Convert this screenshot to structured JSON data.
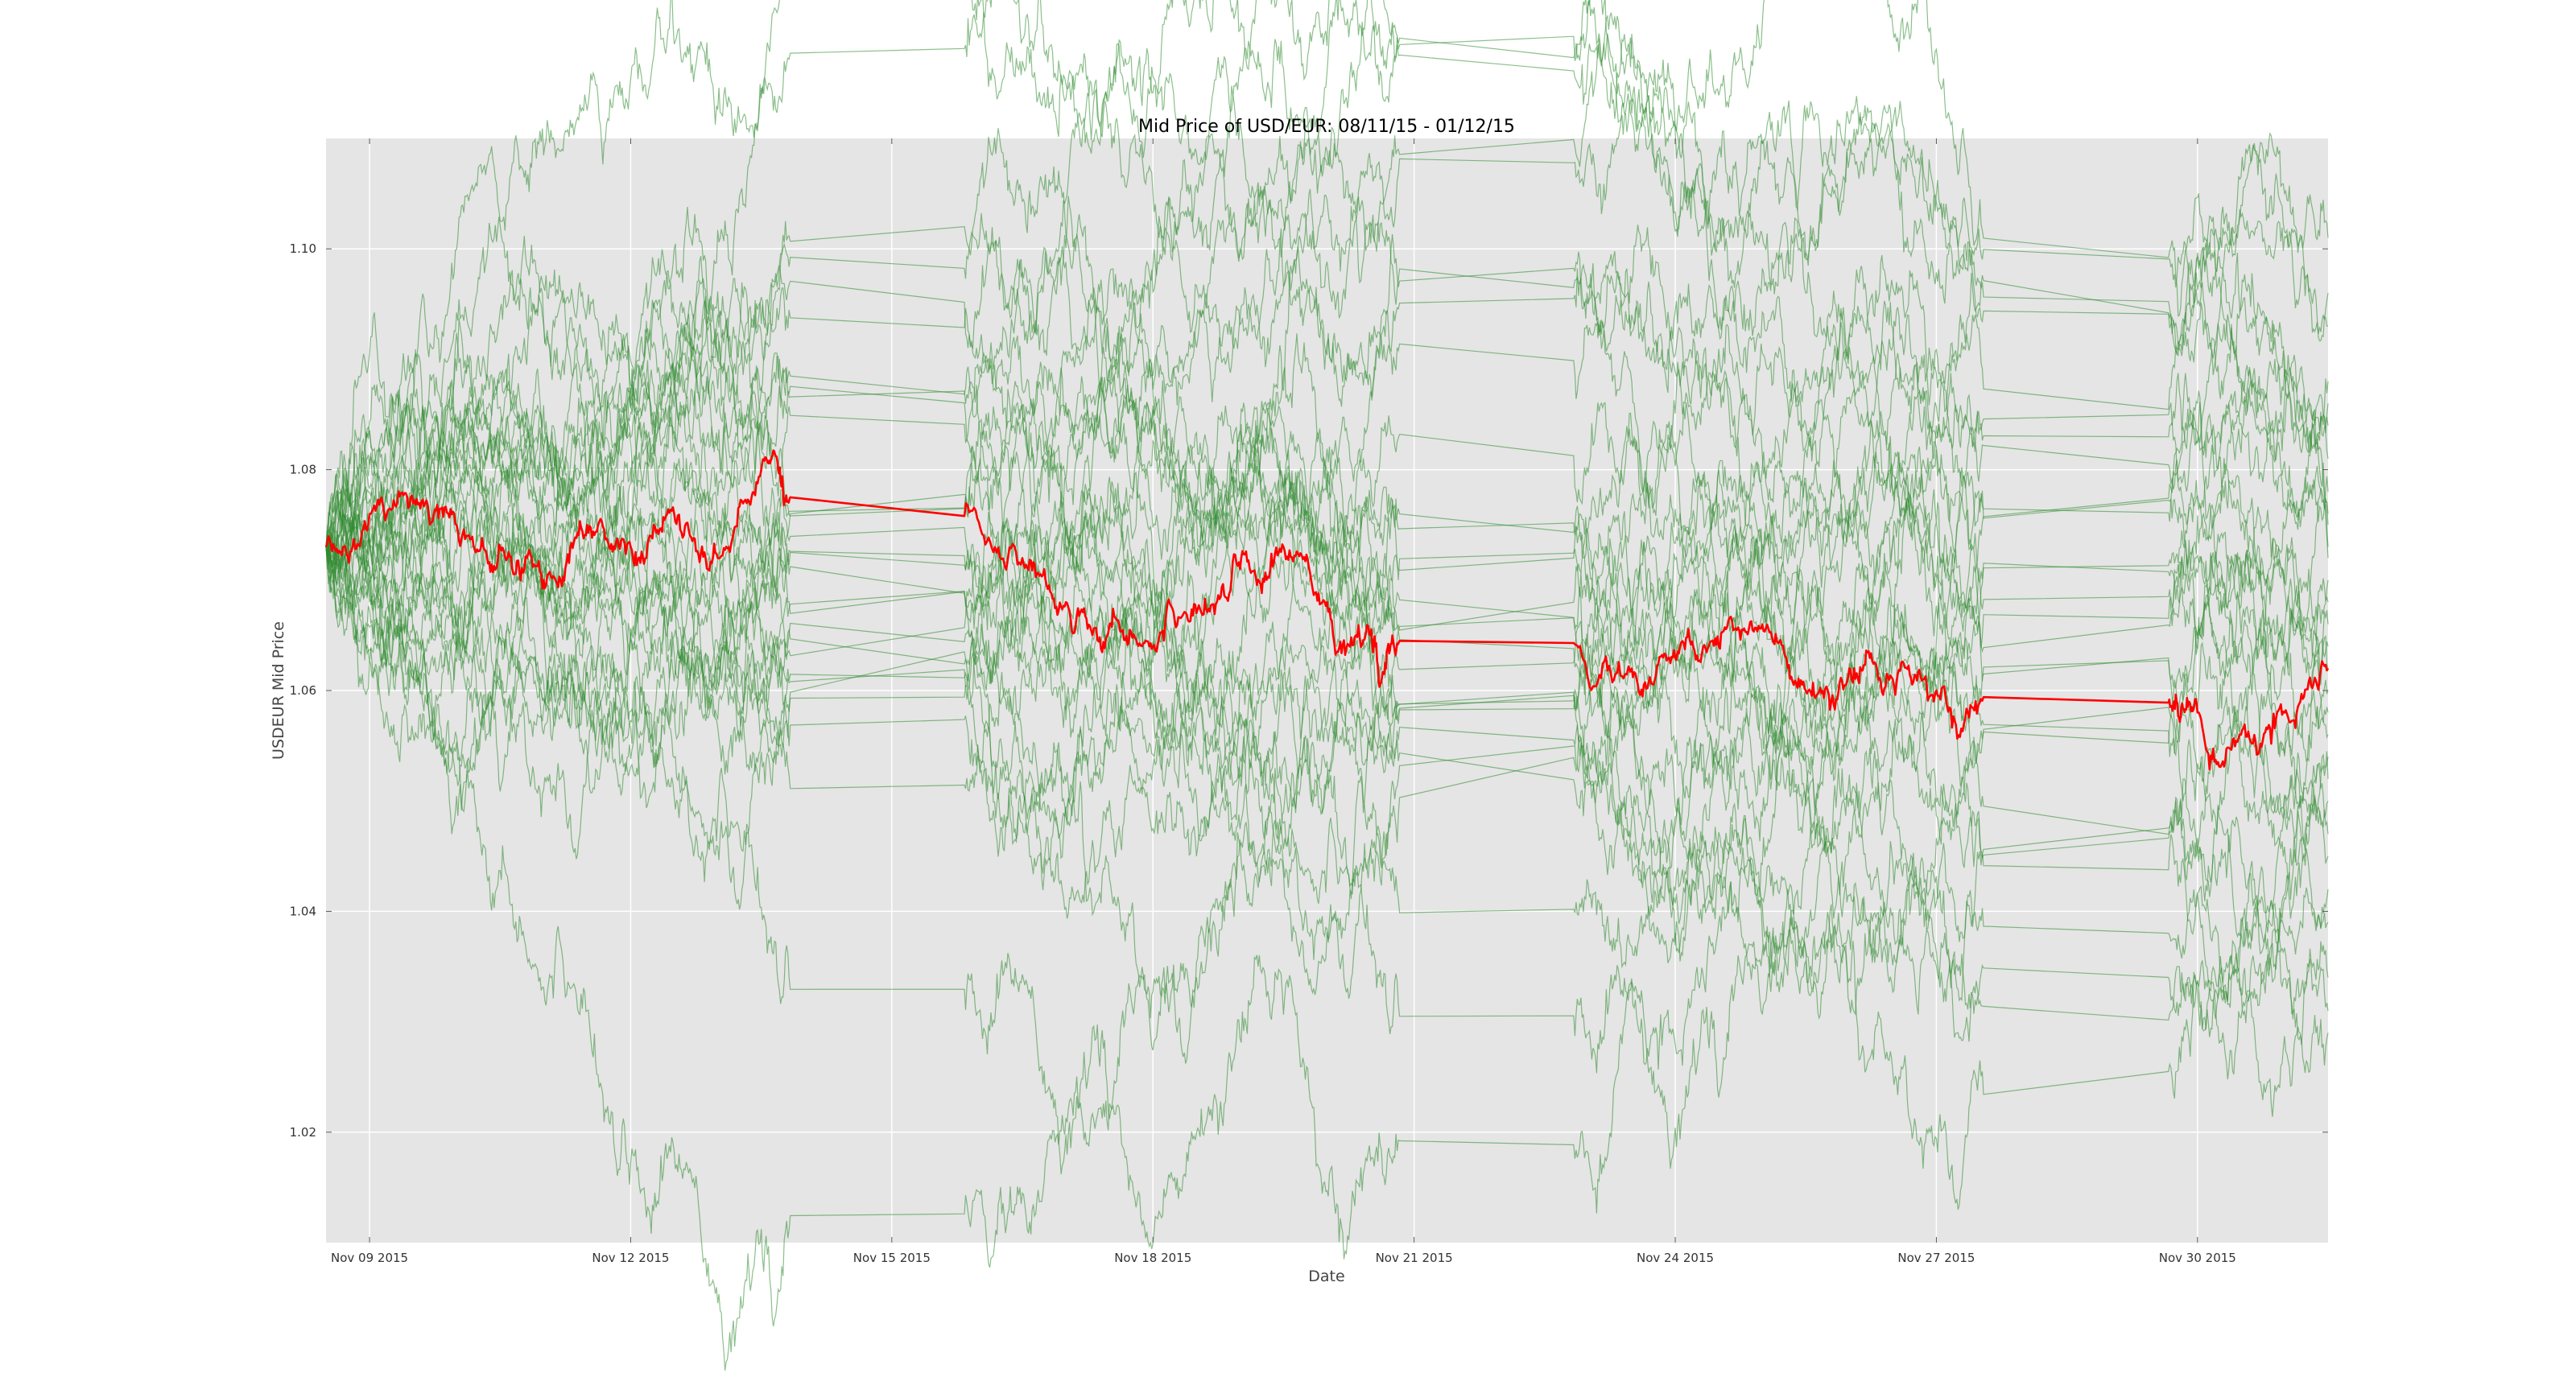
{
  "chart_data": {
    "type": "line",
    "title": "Mid Price of USD/EUR: 08/11/15 - 01/12/15",
    "xlabel": "Date",
    "ylabel": "USDEUR Mid Price",
    "xlim": [
      "2015-11-08T12:00",
      "2015-12-01T12:00"
    ],
    "ylim": [
      1.01,
      1.11
    ],
    "x_ticks": [
      "2015-11-09",
      "2015-11-12",
      "2015-11-15",
      "2015-11-18",
      "2015-11-21",
      "2015-11-24",
      "2015-11-27",
      "2015-11-30"
    ],
    "x_tick_labels": [
      "Nov 09 2015",
      "Nov 12 2015",
      "Nov 15 2015",
      "Nov 18 2015",
      "Nov 21 2015",
      "Nov 24 2015",
      "Nov 27 2015",
      "Nov 30 2015"
    ],
    "y_ticks": [
      1.02,
      1.04,
      1.06,
      1.08,
      1.1
    ],
    "y_tick_labels": [
      "1.02",
      "1.04",
      "1.06",
      "1.08",
      "1.10"
    ],
    "grid": true,
    "background": "#e5e5e5",
    "series_colors": {
      "observed": "#ff0000",
      "simulated": "#2e8b2e"
    },
    "trading_gaps": [
      [
        "2015-11-13T20:00",
        "2015-11-15T20:00"
      ],
      [
        "2015-11-20T20:00",
        "2015-11-22T20:00"
      ],
      [
        "2015-11-27T13:00",
        "2015-11-29T16:00"
      ]
    ],
    "simulated_paths": {
      "count": 30,
      "start_value": 1.073,
      "end_values": [
        1.101,
        1.096,
        1.093,
        1.088,
        1.086,
        1.084,
        1.081,
        1.078,
        1.076,
        1.075,
        1.073,
        1.072,
        1.07,
        1.068,
        1.066,
        1.064,
        1.062,
        1.06,
        1.058,
        1.056,
        1.054,
        1.052,
        1.05,
        1.047,
        1.045,
        1.042,
        1.039,
        1.034,
        1.031,
        1.029
      ]
    },
    "series": [
      {
        "x": [
          "2015-11-08T12:00",
          "2015-11-09T00:00",
          "2015-11-09T12:00",
          "2015-11-10T00:00",
          "2015-11-10T12:00",
          "2015-11-11T00:00",
          "2015-11-11T12:00",
          "2015-11-12T00:00",
          "2015-11-12T12:00",
          "2015-11-13T00:00",
          "2015-11-13T12:00",
          "2015-11-13T20:00",
          "2015-11-15T20:00",
          "2015-11-16T12:00",
          "2015-11-17T00:00",
          "2015-11-17T12:00",
          "2015-11-18T00:00",
          "2015-11-18T12:00",
          "2015-11-19T00:00",
          "2015-11-19T12:00",
          "2015-11-20T00:00",
          "2015-11-20T12:00",
          "2015-11-20T20:00",
          "2015-11-22T20:00",
          "2015-11-23T12:00",
          "2015-11-24T00:00",
          "2015-11-24T12:00",
          "2015-11-25T00:00",
          "2015-11-25T12:00",
          "2015-11-26T00:00",
          "2015-11-26T12:00",
          "2015-11-27T00:00",
          "2015-11-27T13:00",
          "2015-11-29T16:00",
          "2015-11-30T00:00",
          "2015-11-30T12:00",
          "2015-12-01T00:00",
          "2015-12-01T12:00"
        ],
        "y": [
          1.073,
          1.076,
          1.077,
          1.075,
          1.073,
          1.07,
          1.075,
          1.073,
          1.076,
          1.072,
          1.08,
          1.0775,
          1.0758,
          1.072,
          1.068,
          1.066,
          1.064,
          1.067,
          1.071,
          1.073,
          1.068,
          1.065,
          1.0645,
          1.0643,
          1.062,
          1.063,
          1.064,
          1.066,
          1.06,
          1.062,
          1.061,
          1.06,
          1.0594,
          1.0589,
          1.058,
          1.056,
          1.058,
          1.062
        ]
      }
    ]
  }
}
